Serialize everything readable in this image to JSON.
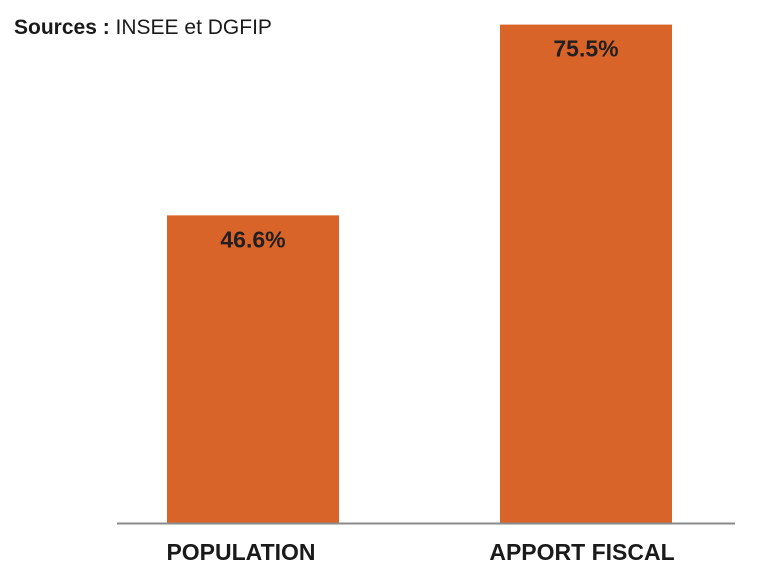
{
  "source": {
    "label": "Sources :",
    "text": "INSEE et DGFIP"
  },
  "chart_data": {
    "type": "bar",
    "categories": [
      "POPULATION",
      "APPORT FISCAL"
    ],
    "values": [
      46.6,
      75.5
    ],
    "value_labels": [
      "46.6%",
      "75.5%"
    ],
    "ylim": [
      0,
      76.5
    ],
    "grid": false,
    "legend": "none",
    "bar_color": "#d9642a",
    "axis_color": "#8a8a8a"
  }
}
